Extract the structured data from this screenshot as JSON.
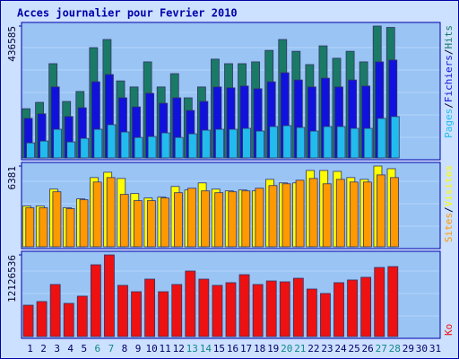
{
  "chart_data": [
    {
      "type": "bar",
      "title": "Acces journalier pour Fevrier 2010",
      "legend_separator": "/",
      "ylim": [
        0,
        436585
      ],
      "yticks": [
        436585
      ],
      "series": [
        {
          "name": "Pages",
          "color": "#22bbee",
          "values": [
            50000,
            56000,
            95000,
            53000,
            65000,
            95000,
            110000,
            86000,
            68000,
            71000,
            83000,
            68000,
            80000,
            92000,
            95000,
            95000,
            98000,
            89000,
            104000,
            107000,
            101000,
            89000,
            104000,
            104000,
            98000,
            98000,
            131000,
            137000,
            null,
            null,
            null
          ]
        },
        {
          "name": "Fichiers",
          "color": "#1111dd",
          "values": [
            131000,
            146000,
            235000,
            137000,
            166000,
            252000,
            276000,
            199000,
            169000,
            214000,
            181000,
            199000,
            157000,
            187000,
            235000,
            232000,
            238000,
            229000,
            252000,
            282000,
            258000,
            235000,
            264000,
            235000,
            258000,
            238000,
            318000,
            324000,
            null,
            null,
            null
          ]
        },
        {
          "name": "Hits",
          "color": "#1a7a66",
          "values": [
            163000,
            184000,
            312000,
            187000,
            220000,
            365000,
            392000,
            255000,
            235000,
            318000,
            235000,
            279000,
            199000,
            235000,
            327000,
            312000,
            312000,
            318000,
            356000,
            392000,
            353000,
            309000,
            371000,
            330000,
            353000,
            318000,
            436585,
            432000,
            null,
            null,
            null
          ]
        }
      ]
    },
    {
      "type": "bar",
      "legend_separator": "/",
      "ylim": [
        0,
        6381
      ],
      "yticks": [
        6381
      ],
      "series": [
        {
          "name": "Sites",
          "color": "#ff9900",
          "values": [
            3085,
            3085,
            4347,
            3015,
            3716,
            5119,
            5469,
            4137,
            3646,
            3646,
            3857,
            4277,
            4628,
            4418,
            4277,
            4347,
            4418,
            4628,
            4838,
            4979,
            5259,
            5399,
            4979,
            5329,
            5119,
            5119,
            5680,
            5469,
            null,
            null,
            null
          ]
        },
        {
          "name": "Visites",
          "color": "#ffff00",
          "values": [
            3226,
            3226,
            4558,
            3085,
            3786,
            5469,
            5890,
            5399,
            4207,
            3857,
            3927,
            4768,
            4488,
            5049,
            4558,
            4418,
            4488,
            4418,
            5329,
            5049,
            5049,
            6030,
            6030,
            5960,
            5469,
            5329,
            6381,
            6171,
            null,
            null,
            null
          ]
        }
      ]
    },
    {
      "type": "bar",
      "ylim": [
        0,
        12126536
      ],
      "yticks": [
        12126536
      ],
      "categories": [
        "1",
        "2",
        "3",
        "4",
        "5",
        "6",
        "7",
        "8",
        "9",
        "10",
        "11",
        "12",
        "13",
        "14",
        "15",
        "16",
        "17",
        "18",
        "19",
        "20",
        "21",
        "22",
        "23",
        "24",
        "25",
        "26",
        "27",
        "28",
        "29",
        "30",
        "31"
      ],
      "category_colors": [
        "#000066",
        "#000066",
        "#000066",
        "#000066",
        "#000066",
        "#118888",
        "#118888",
        "#000066",
        "#000066",
        "#000066",
        "#000066",
        "#000066",
        "#118888",
        "#118888",
        "#000066",
        "#000066",
        "#000066",
        "#000066",
        "#000066",
        "#118888",
        "#118888",
        "#000066",
        "#000066",
        "#000066",
        "#000066",
        "#000066",
        "#118888",
        "#118888",
        "#000066",
        "#000066",
        "#000066"
      ],
      "series": [
        {
          "name": "Ko",
          "color": "#ee1111",
          "values": [
            4660000,
            5200000,
            7730000,
            4930000,
            6000000,
            10660000,
            12126536,
            7600000,
            6660000,
            8530000,
            6660000,
            7730000,
            9730000,
            8530000,
            7600000,
            8000000,
            9190000,
            7730000,
            8260000,
            8130000,
            8660000,
            7060000,
            6400000,
            8000000,
            8400000,
            8800000,
            10260000,
            10390000,
            null,
            null,
            null
          ]
        }
      ]
    }
  ]
}
